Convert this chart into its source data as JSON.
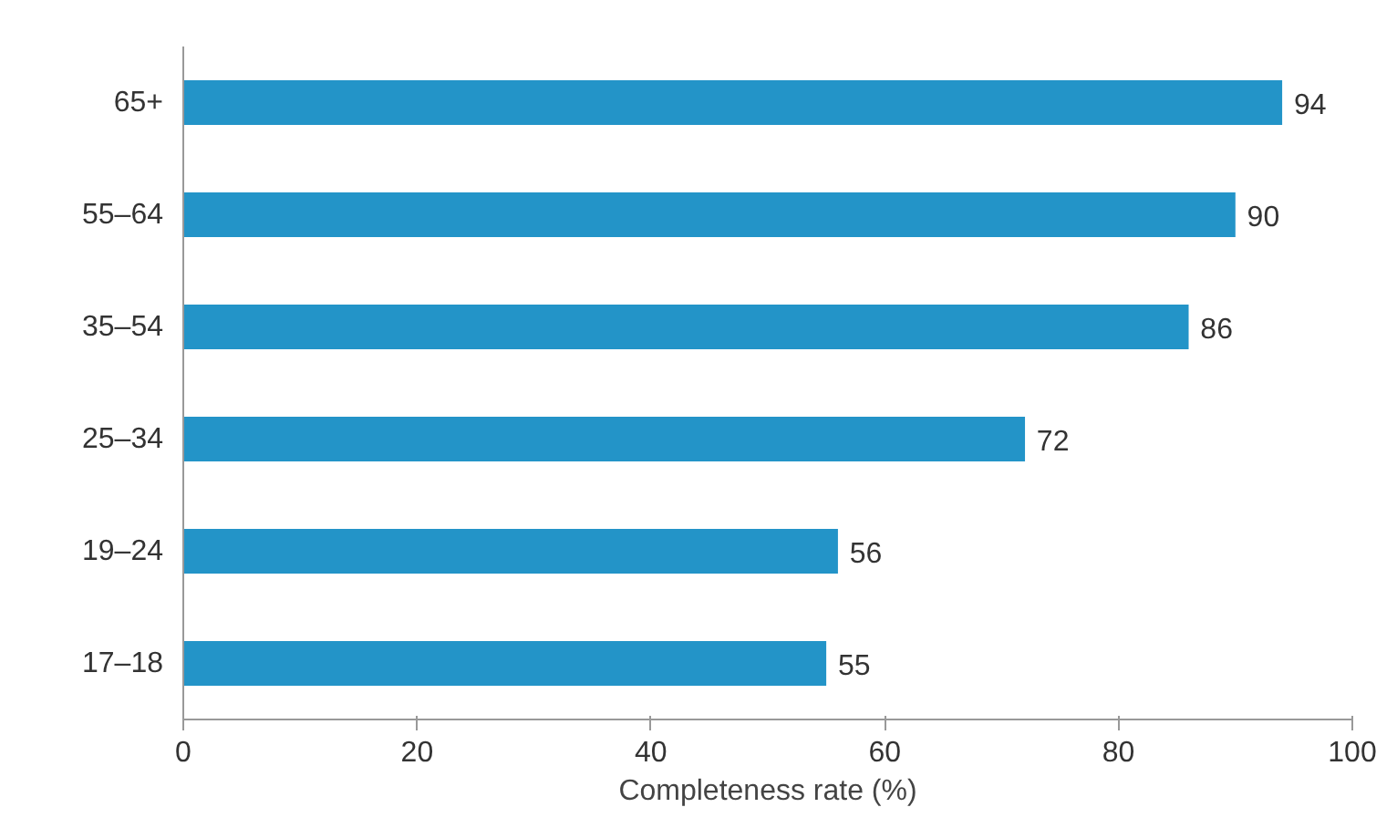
{
  "chart_data": {
    "type": "bar",
    "orientation": "horizontal",
    "xlabel": "Completeness rate (%)",
    "categories": [
      "65+",
      "55–64",
      "35–54",
      "25–34",
      "19–24",
      "17–18"
    ],
    "values": [
      94,
      90,
      86,
      72,
      56,
      55
    ],
    "color": "#2394c8",
    "xlim": [
      0,
      100
    ],
    "xticks": [
      0,
      20,
      40,
      60,
      80,
      100
    ],
    "grid": false,
    "data_labels": true
  }
}
